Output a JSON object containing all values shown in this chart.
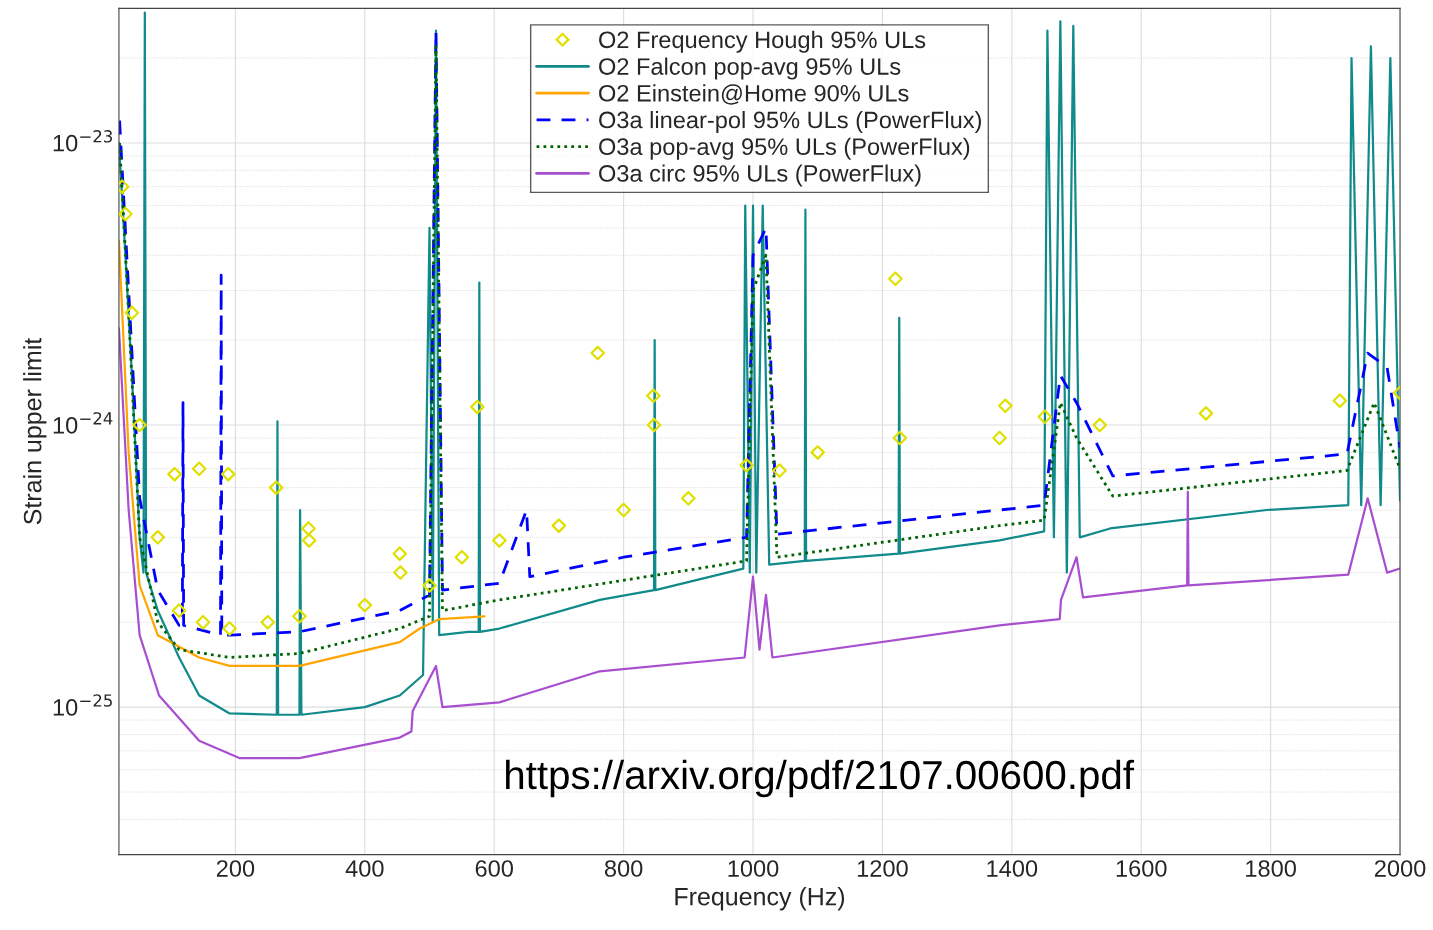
{
  "chart_data": {
    "type": "line",
    "xlabel": "Frequency (Hz)",
    "ylabel": "Strain upper limit",
    "annotations": [
      "https://arxiv.org/pdf/2107.00600.pdf"
    ],
    "log": "y",
    "grid": true,
    "legend": "top",
    "xlim": [
      20,
      2000
    ],
    "xticks": [
      200,
      400,
      600,
      800,
      1000,
      1200,
      1400,
      1600,
      1800,
      2000
    ],
    "ylim": [
      3e-26,
      3e-23
    ],
    "yticks": [
      {
        "value": 1e-25,
        "label": "10$^{−25}$"
      },
      {
        "value": 1e-24,
        "label": "10$^{−24}$"
      },
      {
        "value": 1e-23,
        "label": "10$^{−23}$"
      }
    ],
    "series": [
      {
        "name": "O2 Frequency Hough 95% ULs",
        "type": "scatter",
        "marker": "diamond",
        "color": "#e0e000",
        "x": [
          25,
          30,
          40,
          52,
          80,
          106,
          113,
          144,
          150,
          189,
          191,
          250,
          263,
          299,
          313,
          314,
          400,
          454,
          455,
          500,
          550,
          574,
          608,
          700,
          760,
          800,
          846,
          847,
          900,
          990,
          1041,
          1100,
          1220,
          1227,
          1381,
          1390,
          1451,
          1536,
          1700,
          1907,
          2000
        ],
        "values": [
          7e-24,
          5.6e-24,
          2.5e-24,
          1e-24,
          4e-25,
          6.7e-25,
          2.2e-25,
          7e-25,
          2e-25,
          6.7e-25,
          1.9e-25,
          2e-25,
          6e-25,
          2.1e-25,
          4.3e-25,
          3.9e-25,
          2.3e-25,
          3.5e-25,
          3e-25,
          2.7e-25,
          3.4e-25,
          1.16e-24,
          3.9e-25,
          4.4e-25,
          1.8e-24,
          5e-25,
          1.27e-24,
          1e-24,
          5.5e-25,
          7.2e-25,
          6.9e-25,
          8e-25,
          3.3e-24,
          9e-25,
          9e-25,
          1.17e-24,
          1.07e-24,
          1e-24,
          1.1e-24,
          1.22e-24,
          1.3e-24
        ]
      },
      {
        "name": "O2 Falcon pop-avg 95% ULs",
        "line_style": "solid",
        "color": "#108a8a",
        "x": [
          20,
          30,
          40,
          52,
          58,
          60,
          62,
          80,
          113,
          144,
          191,
          264,
          265,
          266,
          299,
          300,
          302,
          400,
          454,
          490,
          500,
          505,
          510,
          515,
          560,
          576,
          577,
          578,
          608,
          763,
          847,
          848,
          849,
          985,
          988,
          995,
          1000,
          1005,
          1015,
          1025,
          1080,
          1081,
          1082,
          1225,
          1226,
          1227,
          1381,
          1450,
          1455,
          1465,
          1475,
          1485,
          1495,
          1505,
          1552,
          1794,
          1920,
          1925,
          1940,
          1955,
          1970,
          1985,
          2000
        ],
        "values": [
          1e-23,
          4e-24,
          1.5e-24,
          4e-25,
          3e-25,
          2.9e-23,
          3e-25,
          2.2e-25,
          1.5e-25,
          1.1e-25,
          9.5e-26,
          9.4e-26,
          1.03e-24,
          9.4e-26,
          9.4e-26,
          5e-25,
          9.4e-26,
          1e-25,
          1.1e-25,
          1.3e-25,
          5e-24,
          2e-25,
          2.5e-23,
          1.8e-25,
          1.85e-25,
          1.85e-25,
          3.2e-24,
          1.85e-25,
          1.9e-25,
          2.4e-25,
          2.6e-25,
          2e-24,
          2.6e-25,
          3.1e-25,
          6e-24,
          3e-25,
          6e-24,
          3e-25,
          6e-24,
          3.2e-25,
          3.3e-25,
          5.8e-24,
          3.3e-25,
          3.5e-25,
          2.4e-24,
          3.5e-25,
          3.9e-25,
          4.2e-25,
          2.5e-23,
          4e-25,
          2.7e-23,
          3e-25,
          2.6e-23,
          4e-25,
          4.3e-25,
          5e-25,
          5.2e-25,
          2e-23,
          5.2e-25,
          2.2e-23,
          5.2e-25,
          2e-23,
          5.4e-25
        ]
      },
      {
        "name": "O2 Einstein@Home 90% ULs",
        "line_style": "solid",
        "color": "#ffa500",
        "x": [
          20,
          35,
          52,
          80,
          144,
          191,
          299,
          454,
          485,
          515,
          585
        ],
        "values": [
          4.5e-24,
          8e-25,
          2.7e-25,
          1.8e-25,
          1.5e-25,
          1.4e-25,
          1.4e-25,
          1.7e-25,
          1.9e-25,
          2.05e-25,
          2.1e-25
        ]
      },
      {
        "name": "O3a linear-pol 95% ULs (PowerFlux)",
        "line_style": "dashed",
        "color": "#0000ff",
        "x": [
          21,
          35,
          52,
          80,
          113,
          118,
          119,
          120,
          177,
          178,
          179,
          191,
          299,
          454,
          500,
          510,
          520,
          608,
          650,
          655,
          800,
          990,
          1000,
          1020,
          1037,
          1381,
          1450,
          1475,
          1500,
          1556,
          1918,
          1950,
          1980,
          2000
        ],
        "values": [
          1.2e-23,
          3e-24,
          5.5e-25,
          2.6e-25,
          1.95e-25,
          1.95e-25,
          1.2e-24,
          1.95e-25,
          1.8e-25,
          3.4e-24,
          1.8e-25,
          1.8e-25,
          1.85e-25,
          2.2e-25,
          2.5e-25,
          2.5e-23,
          2.6e-25,
          2.75e-25,
          5e-25,
          2.9e-25,
          3.4e-25,
          4e-25,
          4e-24,
          5e-24,
          4.1e-25,
          5e-25,
          5.2e-25,
          1.5e-24,
          1.2e-24,
          6.6e-25,
          7.9e-25,
          1.8e-24,
          1.6e-24,
          8.3e-25
        ]
      },
      {
        "name": "O3a pop-avg 95% ULs (PowerFlux)",
        "line_style": "dotted",
        "color": "#006400",
        "x": [
          21,
          35,
          52,
          80,
          113,
          191,
          299,
          454,
          500,
          510,
          520,
          608,
          990,
          1000,
          1020,
          1037,
          1381,
          1450,
          1475,
          1500,
          1556,
          1918,
          1960,
          2000
        ],
        "values": [
          1e-23,
          2.5e-24,
          4e-25,
          2e-25,
          1.6e-25,
          1.5e-25,
          1.55e-25,
          1.9e-25,
          2.1e-25,
          2.2e-23,
          2.2e-25,
          2.4e-25,
          3.3e-25,
          3e-24,
          4e-24,
          3.4e-25,
          4.4e-25,
          4.6e-25,
          1.2e-24,
          9e-25,
          5.6e-25,
          6.9e-25,
          1.2e-24,
          7e-25
        ]
      },
      {
        "name": "O3a circ 95% ULs (PowerFlux)",
        "line_style": "solid",
        "color": "#a84fd0",
        "x": [
          20,
          35,
          52,
          82,
          144,
          206,
          299,
          454,
          472,
          474,
          510,
          520,
          608,
          763,
          987,
          1000,
          1010,
          1020,
          1030,
          1381,
          1474,
          1476,
          1500,
          1510,
          1671,
          1672,
          1673,
          1920,
          1950,
          1980,
          2000
        ],
        "values": [
          2.2e-24,
          5e-25,
          1.8e-25,
          1.1e-25,
          7.6e-26,
          6.6e-26,
          6.6e-26,
          7.8e-26,
          8.2e-26,
          9.7e-26,
          1.4e-25,
          1e-25,
          1.04e-25,
          1.34e-25,
          1.5e-25,
          2.9e-25,
          1.6e-25,
          2.5e-25,
          1.5e-25,
          1.95e-25,
          2.05e-25,
          2.4e-25,
          3.4e-25,
          2.45e-25,
          2.7e-25,
          5.8e-25,
          2.7e-25,
          2.95e-25,
          5.5e-25,
          3e-25,
          3.1e-25
        ]
      }
    ]
  }
}
